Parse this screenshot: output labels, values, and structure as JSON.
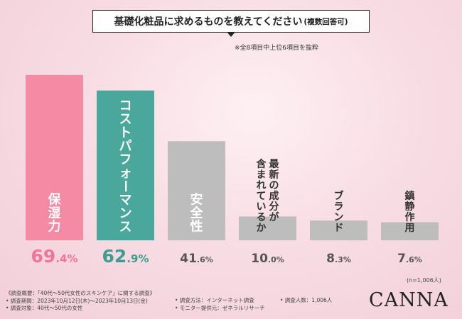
{
  "title": {
    "main": "基礎化粧品に求めるものを教えてください",
    "sub": "(複数回答可)"
  },
  "note": "※全8項目中上位6項目を抜粋",
  "n_label": "(n=1,006人)",
  "survey": {
    "outline": "《調査概要：「40代～50代女性のスキンケア」に関する調査》",
    "period": "• 調査期間：2023年10月12日(木)～2023年10月13日(金)",
    "target": "• 調査対象：40代～50代の女性",
    "method": "• 調査方法：インターネット調査",
    "provider": "• モニター提供元：ゼネラルリサーチ",
    "count": "• 調査人数：1,006人"
  },
  "logo": "CANNA",
  "colors": {
    "top1": "#f48aa4",
    "top2": "#49a79b",
    "other": "#bdbdbd",
    "top1_text": "#f27597",
    "top2_text": "#3d9e90",
    "other_text": "#555555"
  },
  "chart_data": {
    "type": "bar",
    "categories": [
      "保湿力",
      "コストパフォーマンス",
      "安全性",
      "最新の成分が含まれているか",
      "ブランド",
      "鎮静作用"
    ],
    "label_lines": [
      [
        "保湿力"
      ],
      [
        "コストパフォーマンス"
      ],
      [
        "安全性"
      ],
      [
        "最新の成分が",
        "含まれているか"
      ],
      [
        "ブランド"
      ],
      [
        "鎮静作用"
      ]
    ],
    "values": [
      69.4,
      62.9,
      41.6,
      10.0,
      8.3,
      7.6
    ],
    "unit": "%",
    "ylim": [
      0,
      100
    ]
  }
}
